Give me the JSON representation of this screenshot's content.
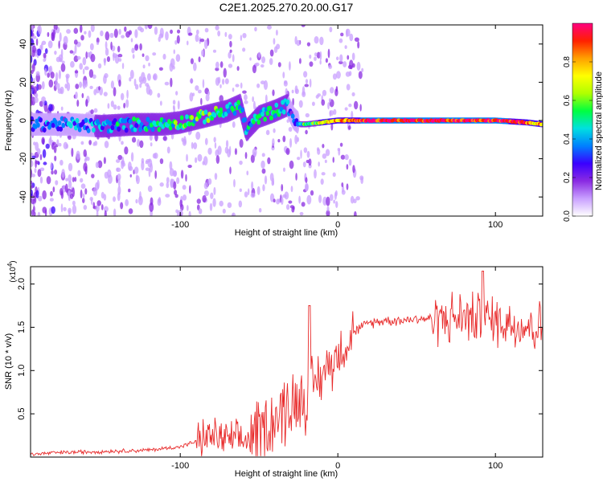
{
  "figure_title": "C2E1.2025.270.20.00.G17",
  "colorbar": {
    "label": "Normalized spectral amplitude",
    "ticks": [
      "0.0",
      "0.2",
      "0.4",
      "0.6",
      "0.8"
    ],
    "colors": [
      "#ffffff",
      "#c9a0ff",
      "#8a2be2",
      "#3a00ff",
      "#0080ff",
      "#00e0e0",
      "#00ff40",
      "#b0ff00",
      "#ffff00",
      "#ffa000",
      "#ff2000",
      "#ff0080"
    ]
  },
  "chart_data": [
    {
      "type": "heatmap",
      "title": "",
      "xlabel": "Height of straight line (km)",
      "ylabel": "Frequency (Hz)",
      "xlim": [
        -195,
        130
      ],
      "ylim": [
        -50,
        50
      ],
      "xticks": [
        "-100",
        "0",
        "100"
      ],
      "yticks": [
        "-40",
        "-20",
        "0",
        "20",
        "40"
      ],
      "ridge_x": [
        -190,
        -170,
        -150,
        -130,
        -110,
        -100,
        -90,
        -80,
        -70,
        -62,
        -58,
        -50,
        -40,
        -32,
        -28,
        -24,
        -20,
        0,
        20,
        60,
        100,
        120,
        130
      ],
      "ridge_y": [
        -2,
        -2,
        -3,
        -2,
        -2,
        -1,
        1,
        3,
        5,
        8,
        -5,
        2,
        5,
        8,
        1,
        -2,
        -2,
        0,
        0,
        0,
        0,
        -1,
        -2
      ],
      "ridge_amplitude": [
        0.3,
        0.35,
        0.4,
        0.4,
        0.45,
        0.5,
        0.5,
        0.55,
        0.5,
        0.45,
        0.4,
        0.45,
        0.45,
        0.4,
        0.3,
        0.4,
        0.55,
        0.8,
        0.95,
        0.95,
        0.95,
        0.85,
        0.75
      ]
    },
    {
      "type": "line",
      "title": "",
      "xlabel": "Height of straight line (km)",
      "ylabel": "SNR (10 * v/v)",
      "scale_label": "(x10",
      "scale_exp": "4",
      "scale_close": ")",
      "xlim": [
        -195,
        130
      ],
      "ylim": [
        0,
        2.2
      ],
      "xticks": [
        "-100",
        "0",
        "100"
      ],
      "yticks": [
        "0.5",
        "1.0",
        "1.5",
        "2.0"
      ],
      "color": "#e82a2a",
      "x": [
        -195,
        -180,
        -160,
        -140,
        -120,
        -100,
        -90,
        -80,
        -70,
        -60,
        -50,
        -40,
        -30,
        -20,
        -10,
        0,
        10,
        20,
        30,
        40,
        50,
        60,
        70,
        80,
        90,
        100,
        110,
        120,
        130
      ],
      "y": [
        0.03,
        0.05,
        0.06,
        0.07,
        0.08,
        0.12,
        0.18,
        0.25,
        0.2,
        0.18,
        0.3,
        0.45,
        0.6,
        0.75,
        0.95,
        1.2,
        1.45,
        1.55,
        1.58,
        1.58,
        1.6,
        1.6,
        1.6,
        1.62,
        1.6,
        1.58,
        1.55,
        1.52,
        1.5
      ]
    }
  ]
}
